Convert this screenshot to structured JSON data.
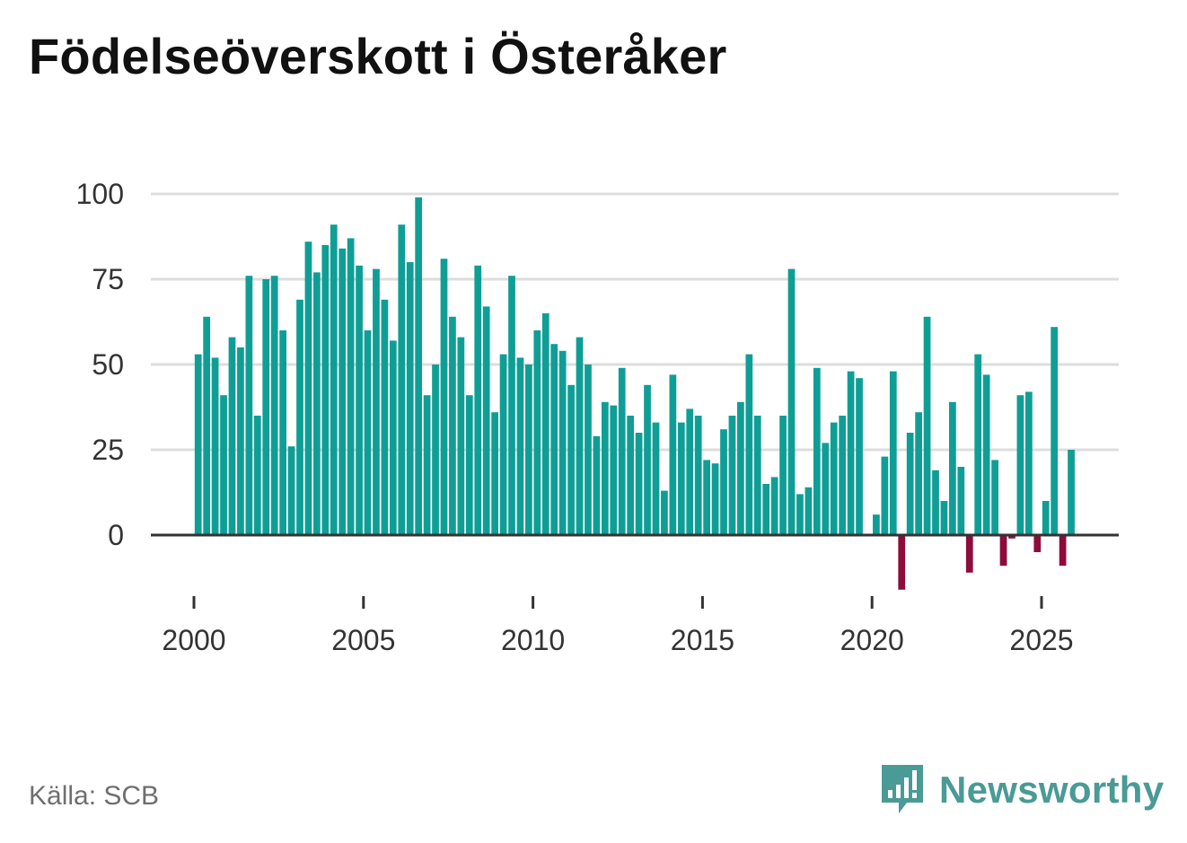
{
  "title": "Födelseöverskott i Österåker",
  "source_label": "Källa: SCB",
  "brand": {
    "name": "Newsworthy",
    "icon": "newsworthy-bar-chart-icon"
  },
  "colors": {
    "positive": "#0f9e96",
    "negative": "#8e0c3a",
    "grid": "#dddddd",
    "zero_line": "#333333",
    "brand": "#4a9a96",
    "text": "#333333"
  },
  "chart_data": {
    "type": "bar",
    "title": "Födelseöverskott i Österåker",
    "frequency": "quarterly",
    "start": "2000-Q1",
    "xlabel": "",
    "ylabel": "",
    "ylim": [
      -16,
      100
    ],
    "xlim": [
      2000,
      2027.2
    ],
    "yticks": [
      0,
      25,
      50,
      75,
      100
    ],
    "xticks": [
      2000,
      2005,
      2010,
      2015,
      2020,
      2025
    ],
    "grid": true,
    "legend": "none",
    "values": [
      53,
      64,
      52,
      41,
      58,
      55,
      76,
      35,
      75,
      76,
      60,
      26,
      69,
      86,
      77,
      85,
      91,
      84,
      87,
      79,
      60,
      78,
      69,
      57,
      91,
      80,
      99,
      41,
      50,
      81,
      64,
      58,
      41,
      79,
      67,
      36,
      53,
      76,
      52,
      50,
      60,
      65,
      56,
      54,
      44,
      58,
      50,
      29,
      39,
      38,
      49,
      35,
      30,
      44,
      33,
      13,
      47,
      33,
      37,
      35,
      22,
      21,
      31,
      35,
      39,
      53,
      35,
      15,
      17,
      35,
      78,
      12,
      14,
      49,
      27,
      33,
      35,
      48,
      46,
      0,
      6,
      23,
      48,
      -16,
      30,
      36,
      64,
      19,
      10,
      39,
      20,
      -11,
      53,
      47,
      22,
      -9,
      -1,
      41,
      42,
      -5,
      10,
      61,
      -9,
      25
    ]
  }
}
